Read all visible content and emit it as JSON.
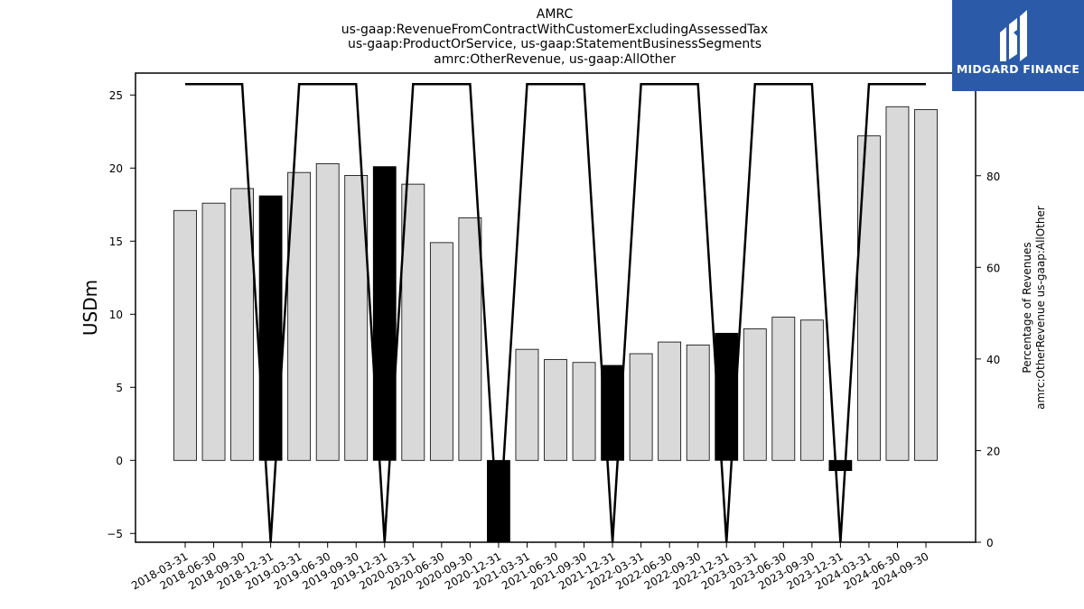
{
  "chart_data": {
    "type": "bar",
    "title_lines": [
      "AMRC",
      "us-gaap:RevenueFromContractWithCustomerExcludingAssessedTax",
      "us-gaap:ProductOrService, us-gaap:StatementBusinessSegments",
      "amrc:OtherRevenue, us-gaap:AllOther"
    ],
    "ylabel": "USDm",
    "y2label_lines": [
      "Percentage of Revenues",
      "amrc:OtherRevenue us-gaap:AllOther"
    ],
    "ylim": [
      -5.6,
      26.5
    ],
    "y2lim": [
      0,
      102.4
    ],
    "yticks": [
      -5,
      0,
      5,
      10,
      15,
      20,
      25
    ],
    "y2ticks": [
      0,
      20,
      40,
      60,
      80,
      100
    ],
    "categories": [
      "2018-03-31",
      "2018-06-30",
      "2018-09-30",
      "2018-12-31",
      "2019-03-31",
      "2019-06-30",
      "2019-09-30",
      "2019-12-31",
      "2020-03-31",
      "2020-06-30",
      "2020-09-30",
      "2020-12-31",
      "2021-03-31",
      "2021-06-30",
      "2021-09-30",
      "2021-12-31",
      "2022-03-31",
      "2022-06-30",
      "2022-09-30",
      "2022-12-31",
      "2023-03-31",
      "2023-06-30",
      "2023-09-30",
      "2023-12-31",
      "2024-03-31",
      "2024-06-30",
      "2024-09-30"
    ],
    "series": [
      {
        "kind": "bar",
        "values": [
          17.1,
          17.6,
          18.6,
          18.1,
          19.7,
          20.3,
          19.5,
          20.1,
          18.9,
          14.9,
          16.6,
          -5.7,
          7.6,
          6.9,
          6.7,
          6.5,
          7.3,
          8.1,
          7.9,
          8.7,
          9.0,
          9.8,
          9.6,
          -0.7,
          22.2,
          24.2,
          24.0
        ],
        "highlight": [
          false,
          false,
          false,
          true,
          false,
          false,
          false,
          true,
          false,
          false,
          false,
          true,
          false,
          false,
          false,
          true,
          false,
          false,
          false,
          true,
          false,
          false,
          false,
          true,
          false,
          false,
          false
        ]
      },
      {
        "kind": "line",
        "axis": "right",
        "values": [
          100,
          100,
          100,
          0,
          100,
          100,
          100,
          0,
          100,
          100,
          100,
          0,
          100,
          100,
          100,
          0,
          100,
          100,
          100,
          0,
          100,
          100,
          100,
          0,
          100,
          100,
          100
        ]
      }
    ],
    "colors": {
      "bar": "#d9d9d9",
      "highlight": "#000000",
      "line": "#000000"
    }
  },
  "logo": {
    "text": "MIDGARD FINANCE",
    "bg": "#2a5aa8",
    "fg": "#ffffff"
  }
}
